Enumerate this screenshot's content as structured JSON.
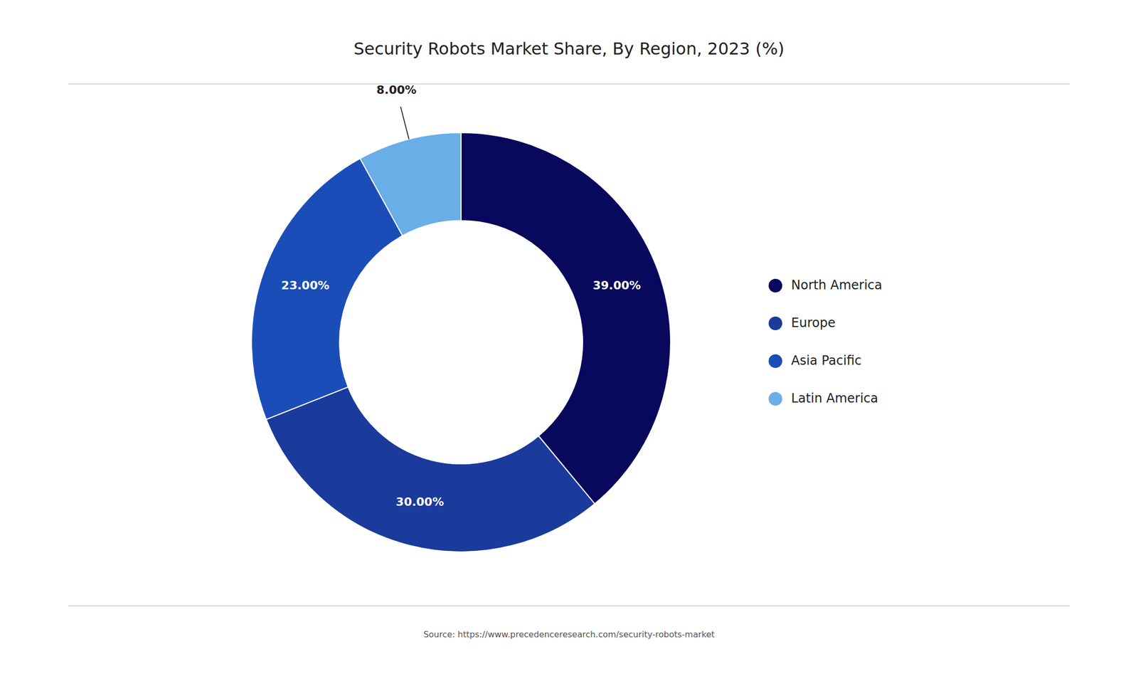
{
  "chart_data": {
    "type": "donut",
    "title": "Security Robots Market Share, By Region, 2023 (%)",
    "categories": [
      "North America",
      "Europe",
      "Asia Pacific",
      "Latin America"
    ],
    "values": [
      39.0,
      30.0,
      23.0,
      8.0
    ],
    "value_labels": [
      "39.00%",
      "30.00%",
      "23.00%",
      "8.00%"
    ],
    "colors": [
      "#08085C",
      "#1A3A9C",
      "#1B4DB8",
      "#6AAEE8"
    ],
    "data_labels": true,
    "legend": "right",
    "annotations": [
      "Source: https://www.precedenceresearch.com/security-robots-market"
    ]
  }
}
